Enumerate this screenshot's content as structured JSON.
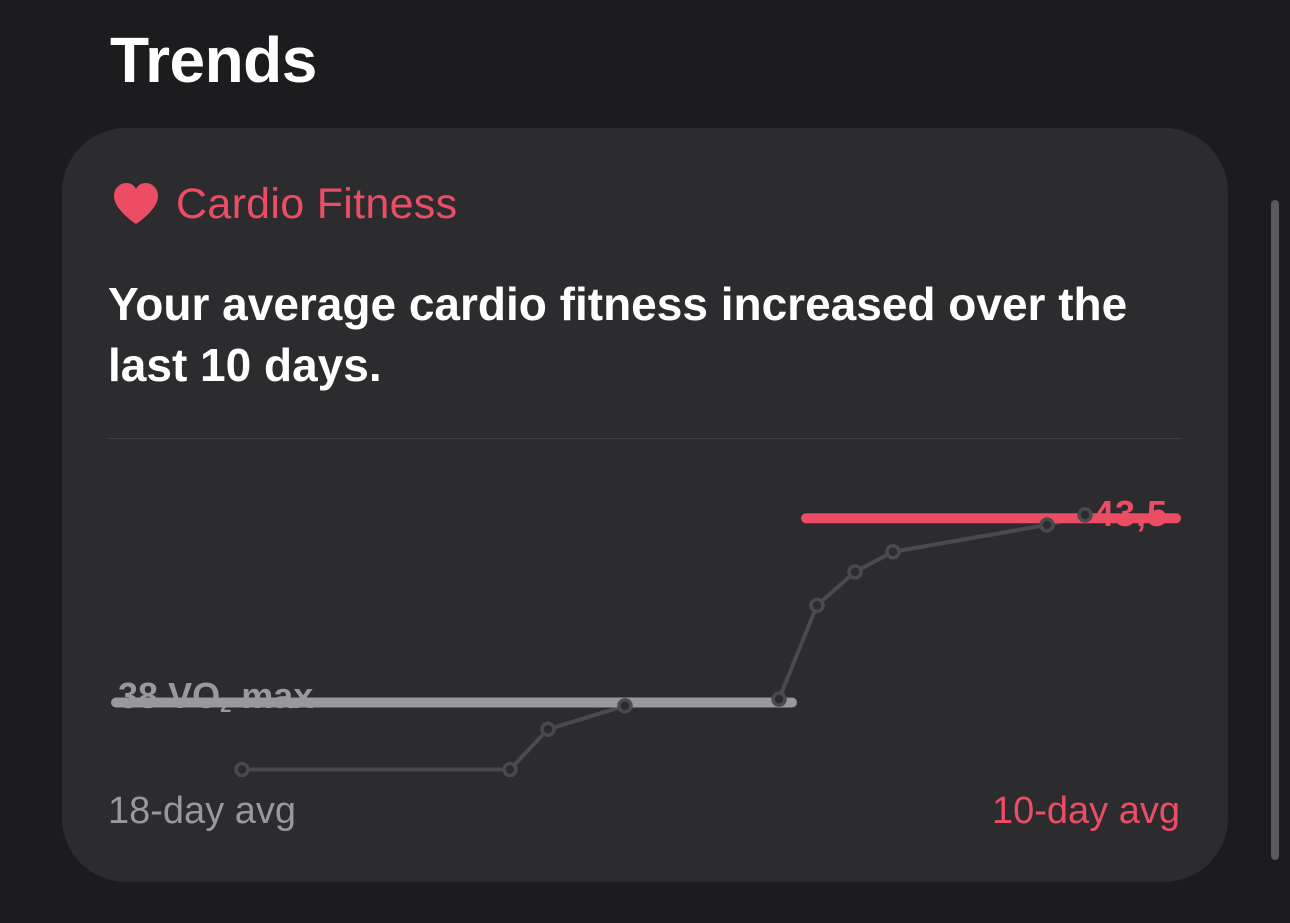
{
  "section": {
    "title": "Trends"
  },
  "card": {
    "category": "Cardio Fitness",
    "message": "Your average cardio fitness increased over the last 10 days.",
    "baseline_number": "38",
    "baseline_unit_main": "VO",
    "baseline_unit_sub": "2",
    "baseline_unit_suffix": "max",
    "current_value": "43,5",
    "left_label": "18-day avg",
    "right_label": "10-day avg"
  },
  "icons": {
    "category_icon": "heart-icon"
  },
  "colors": {
    "background": "#1c1c1e",
    "card": "#2c2c2e",
    "accent": "#ec4d65",
    "secondary": "#98989d",
    "series_line": "#4a4a4d",
    "baseline_bar": "#98989d"
  },
  "chart_data": {
    "type": "line",
    "title": "",
    "series": [
      {
        "values": [
          36.0,
          36.0,
          37.2,
          37.9,
          38.1,
          40.9,
          41.9,
          42.5,
          43.3,
          43.6
        ]
      }
    ],
    "averages": [
      {
        "label": "18-day avg",
        "value": 38
      },
      {
        "label": "10-day avg",
        "value": 43.5
      }
    ],
    "ylim": [
      35,
      45
    ],
    "grid": false
  }
}
